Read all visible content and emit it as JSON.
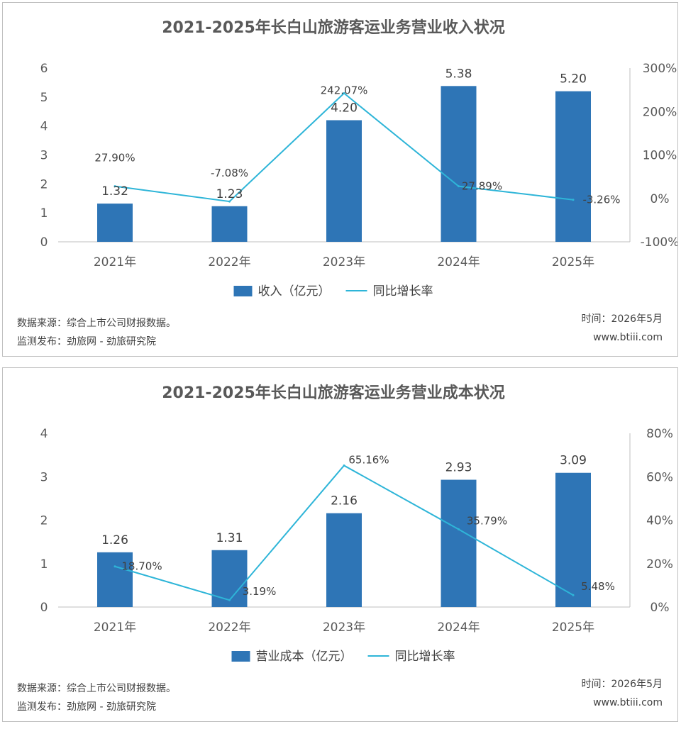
{
  "chart_data": [
    {
      "type": "bar",
      "title": "2021-2025年长白山旅游客运业务营业收入状况",
      "categories": [
        "2021年",
        "2022年",
        "2023年",
        "2024年",
        "2025年"
      ],
      "series": [
        {
          "name": "收入（亿元）",
          "type": "bar",
          "axis": "left",
          "values": [
            1.32,
            1.23,
            4.2,
            5.38,
            5.2
          ],
          "labels": [
            "1.32",
            "1.23",
            "4.20",
            "5.38",
            "5.20"
          ],
          "color": "#2E75B6"
        },
        {
          "name": "同比增长率",
          "type": "line",
          "axis": "right",
          "values": [
            27.9,
            -7.08,
            242.07,
            27.89,
            -3.26
          ],
          "labels": [
            "27.90%",
            "-7.08%",
            "242.07%",
            "27.89%",
            "-3.26%"
          ],
          "color": "#2EB5D8"
        }
      ],
      "ylim": [
        0,
        6
      ],
      "yticks": [
        "0",
        "1",
        "2",
        "3",
        "4",
        "5",
        "6"
      ],
      "y2lim": [
        -100,
        300
      ],
      "y2ticks": [
        "-100%",
        "0%",
        "100%",
        "200%",
        "300%"
      ],
      "legend": "bottom",
      "grid": false,
      "footer": {
        "source": "数据来源：综合上市公司财报数据。",
        "publisher": "监测发布：劲旅网 - 劲旅研究院",
        "time": "时间：2026年5月",
        "site": "www.btiii.com"
      }
    },
    {
      "type": "bar",
      "title": "2021-2025年长白山旅游客运业务营业成本状况",
      "categories": [
        "2021年",
        "2022年",
        "2023年",
        "2024年",
        "2025年"
      ],
      "series": [
        {
          "name": "营业成本（亿元）",
          "type": "bar",
          "axis": "left",
          "values": [
            1.26,
            1.31,
            2.16,
            2.93,
            3.09
          ],
          "labels": [
            "1.26",
            "1.31",
            "2.16",
            "2.93",
            "3.09"
          ],
          "color": "#2E75B6"
        },
        {
          "name": "同比增长率",
          "type": "line",
          "axis": "right",
          "values": [
            18.7,
            3.19,
            65.16,
            35.79,
            5.48
          ],
          "labels": [
            "18.70%",
            "3.19%",
            "65.16%",
            "35.79%",
            "5.48%"
          ],
          "color": "#2EB5D8"
        }
      ],
      "ylim": [
        0,
        4
      ],
      "yticks": [
        "0",
        "1",
        "2",
        "3",
        "4"
      ],
      "y2lim": [
        0,
        80
      ],
      "y2ticks": [
        "0%",
        "20%",
        "40%",
        "60%",
        "80%"
      ],
      "legend": "bottom",
      "grid": false,
      "footer": {
        "source": "数据来源：综合上市公司财报数据。",
        "publisher": "监测发布：劲旅网 - 劲旅研究院",
        "time": "时间：2026年5月",
        "site": "www.btiii.com"
      }
    }
  ]
}
